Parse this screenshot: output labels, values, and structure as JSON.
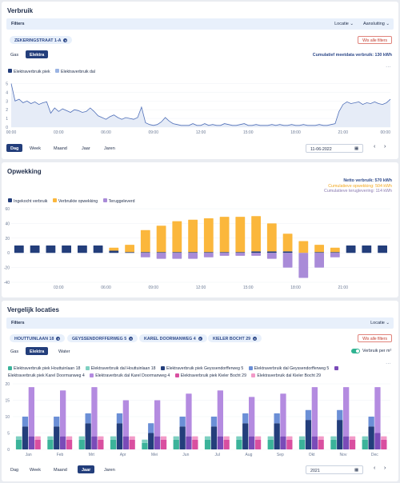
{
  "verbruik": {
    "title": "Verbruik",
    "filters_label": "Filters",
    "locatie": "Locatie ⌄",
    "aansluiting": "Aansluiting ⌄",
    "chip": "ZEKERINGSTRAAT 1-A",
    "clear_filters": "Wis alle filters",
    "tabs": [
      "Gas",
      "Elektra"
    ],
    "active_tab": "Elektra",
    "cumulative": "Cumulatief meetdata verbruik: 130 kWh",
    "legend": [
      "Elektraverbruik piek",
      "Elektraverbruik dal"
    ],
    "periods": [
      "Dag",
      "Week",
      "Maand",
      "Jaar",
      "Jaren"
    ],
    "active_period": "Dag",
    "date": "11-06-2022",
    "menu": "···"
  },
  "opwekking": {
    "title": "Opwekking",
    "netto": "Netto verbruik: 570 kWh",
    "cum_opwekking": "Cumulatieve opwekking: 504 kWh",
    "cum_terug": "Cumulatieve teruglevering: 114 kWh",
    "legend": [
      "Ingekocht verbruik",
      "Verbruikte opwekking",
      "Teruggeleverd"
    ],
    "menu": "···"
  },
  "vergelijk": {
    "title": "Vergelijk locaties",
    "filters_label": "Filters",
    "locatie": "Locatie ⌄",
    "chips": [
      "HOUTTUINLAAN 18",
      "GEYSSENDORFFERWEG 5",
      "KAREL DOORMANWEG 4",
      "KIELER BOCHT 29"
    ],
    "clear_filters": "Wis alle filters",
    "tabs": [
      "Gas",
      "Elektra",
      "Water"
    ],
    "active_tab": "Elektra",
    "toggle_label": "Verbruik per m²",
    "legend": [
      "Elektraverbruik piek Houttuinlaan 18",
      "Elektraverbruik dal Houttuinlaan 18",
      "Elektraverbruik piek Geyssendorfferweg 5",
      "Elektraverbruik dal Geyssendorfferweg 5",
      "Elektraverbruik piek Karel Doormanweg 4",
      "Elektraverbruik dal Karel Doormanweg 4",
      "Elektraverbruik piek Kieler Bocht 29",
      "Elektraverbruik dal Kieler Bocht 29"
    ],
    "periods": [
      "Dag",
      "Week",
      "Maand",
      "Jaar",
      "Jaren"
    ],
    "active_period": "Jaar",
    "year": "2021",
    "menu": "···"
  },
  "colors": {
    "navy": "#233e7b",
    "lightblue": "#9bb4e3",
    "orange": "#fbb73c",
    "purple": "#a98bd8",
    "teal": "#3bb39a",
    "lightteal": "#7ed0c1"
  },
  "chart_data": [
    {
      "type": "area",
      "series": [
        {
          "name": "Elektraverbruik piek",
          "values": [
            5,
            3,
            3.2,
            2.8,
            3,
            2.7,
            2.9,
            2.6,
            2.8,
            2.9,
            1.6,
            2.2,
            1.8,
            2.1,
            1.9,
            1.7,
            2,
            1.9,
            1.7,
            1.8,
            2.2,
            1.8,
            1.3,
            1.1,
            0.9,
            1.2,
            1.4,
            1.1,
            0.9,
            1.1,
            1,
            0.9,
            1.1,
            2.3,
            0.5,
            0.3,
            0.2,
            0.3,
            0.6,
            1.1,
            0.7,
            0.4,
            0.3,
            0.2,
            0.2,
            0.2,
            0.4,
            0.2,
            0.2,
            0.4,
            0.2,
            0.3,
            0.2,
            0.2,
            0.4,
            0.3,
            0.2,
            0.2,
            0.3,
            0.4,
            0.2,
            0.2,
            0.3,
            0.2,
            0.2,
            0.2,
            0.3,
            0.2,
            0.3,
            0.2,
            0.2,
            0.3,
            0.2,
            0.2,
            0.3,
            0.2,
            0.2,
            0.2,
            0.3,
            0.2,
            0.2,
            0.3,
            0.4,
            1.8,
            2.6,
            2.9,
            2.7,
            2.8,
            2.9,
            2.6,
            2.8,
            2.7,
            2.9,
            2.7,
            2.6,
            2.8,
            3.2
          ]
        }
      ],
      "x_ticks": [
        "00:00",
        "03:00",
        "06:00",
        "09:00",
        "12:00",
        "15:00",
        "18:00",
        "21:00",
        "00:00"
      ],
      "y_ticks": [
        0,
        1,
        2,
        3,
        4,
        5
      ],
      "ylim": [
        0,
        5.5
      ]
    },
    {
      "type": "bar",
      "categories": [
        "00:00",
        "01:00",
        "02:00",
        "03:00",
        "04:00",
        "05:00",
        "06:00",
        "07:00",
        "08:00",
        "09:00",
        "10:00",
        "11:00",
        "12:00",
        "13:00",
        "14:00",
        "15:00",
        "16:00",
        "17:00",
        "18:00",
        "19:00",
        "20:00",
        "21:00",
        "22:00",
        "23:00"
      ],
      "series": [
        {
          "name": "Ingekocht verbruik",
          "values": [
            10,
            10,
            10,
            10,
            10,
            10,
            3,
            1,
            1,
            1,
            1,
            1,
            1,
            1,
            1,
            2,
            2,
            2,
            0,
            1,
            1,
            10,
            10,
            10
          ]
        },
        {
          "name": "Verbruikte opwekking",
          "values": [
            0,
            0,
            0,
            0,
            0,
            0,
            4,
            10,
            30,
            36,
            42,
            44,
            46,
            48,
            48,
            48,
            38,
            24,
            16,
            10,
            6,
            0,
            0,
            0
          ]
        },
        {
          "name": "Teruggeleverd",
          "values": [
            0,
            0,
            0,
            0,
            0,
            0,
            0,
            0,
            -6,
            -8,
            -8,
            -8,
            -6,
            -4,
            -4,
            -4,
            -8,
            -20,
            -34,
            -20,
            -6,
            0,
            0,
            0
          ]
        }
      ],
      "x_ticks": [
        "03:00",
        "06:00",
        "09:00",
        "12:00",
        "15:00",
        "18:00",
        "21:00"
      ],
      "y_ticks": [
        -40,
        -20,
        0,
        20,
        40,
        60
      ],
      "ylim": [
        -40,
        60
      ]
    },
    {
      "type": "bar",
      "categories": [
        "Jan",
        "Feb",
        "Mrt",
        "Apr",
        "Mei",
        "Jun",
        "Jul",
        "Aug",
        "Sep",
        "Okt",
        "Nov",
        "Dec"
      ],
      "series": [
        {
          "name": "Elektraverbruik piek Houttuinlaan 18",
          "values": [
            3,
            3,
            3,
            3,
            2,
            3,
            3,
            3,
            3,
            3,
            3,
            3
          ]
        },
        {
          "name": "Elektraverbruik dal Houttuinlaan 18",
          "values": [
            1,
            1,
            1,
            1,
            1,
            1,
            1,
            1,
            1,
            1,
            1,
            1
          ]
        },
        {
          "name": "Elektraverbruik piek Geyssendorfferweg 5",
          "values": [
            7,
            7,
            8,
            8,
            5,
            7,
            7,
            8,
            8,
            9,
            9,
            7
          ]
        },
        {
          "name": "Elektraverbruik dal Geyssendorfferweg 5",
          "values": [
            3,
            3,
            3,
            3,
            3,
            3,
            3,
            3,
            3,
            3,
            3,
            3
          ]
        },
        {
          "name": "Elektraverbruik piek Karel Doormanweg 4",
          "values": [
            4,
            4,
            4,
            4,
            4,
            4,
            4,
            4,
            4,
            4,
            4,
            5
          ]
        },
        {
          "name": "Elektraverbruik dal Karel Doormanweg 4",
          "values": [
            15,
            14,
            15,
            11,
            11,
            13,
            14,
            12,
            13,
            15,
            15,
            14
          ]
        },
        {
          "name": "Elektraverbruik piek Kieler Bocht 29",
          "values": [
            3,
            3,
            3,
            3,
            3,
            3,
            3,
            3,
            3,
            3,
            3,
            3
          ]
        },
        {
          "name": "Elektraverbruik dal Kieler Bocht 29",
          "values": [
            1,
            1,
            1,
            1,
            1,
            1,
            1,
            1,
            1,
            1,
            1,
            1
          ]
        }
      ],
      "y_ticks": [
        0,
        5,
        10,
        15,
        20
      ],
      "ylim": [
        0,
        20
      ]
    }
  ]
}
